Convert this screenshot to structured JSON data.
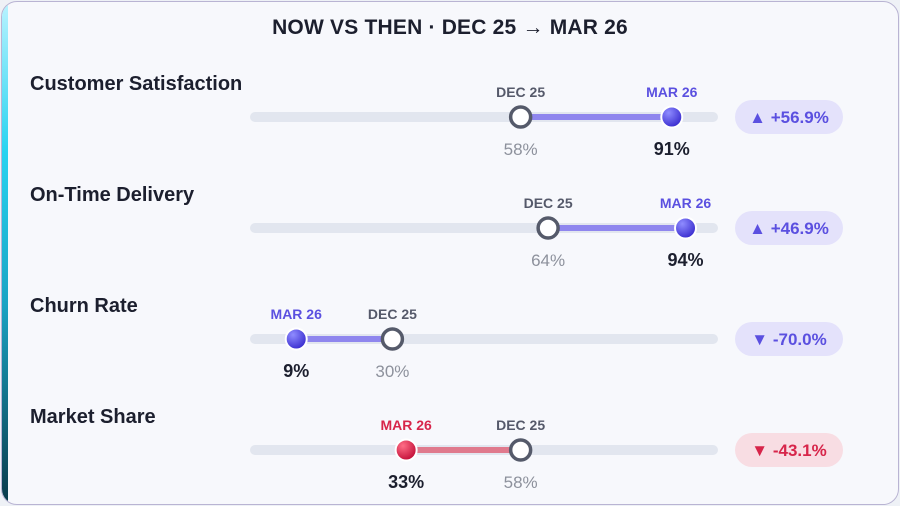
{
  "header": {
    "title": "NOW VS THEN · DEC 25 → MAR 26"
  },
  "colors": {
    "improve": "#5b50e0",
    "improve_light": "#8f86ee",
    "decline": "#d7254a",
    "decline_light": "#e07a8d",
    "improve_badge_bg": "#e4e2fb",
    "decline_badge_bg": "#f8dde3",
    "track": "#e2e6ef",
    "then_marker": "#555a6a",
    "then_value": "#8d919c"
  },
  "chart_data": {
    "type": "dumbbell",
    "title": "NOW VS THEN · DEC 25 → MAR 26",
    "xlim": [
      0,
      100
    ],
    "unit": "%",
    "then_label": "DEC 25",
    "now_label": "MAR 26",
    "rows": [
      {
        "metric": "Customer Satisfaction",
        "then": 58,
        "now": 91,
        "then_text": "58%",
        "now_text": "91%",
        "change": "▲ +56.9%",
        "direction": "improve"
      },
      {
        "metric": "On-Time Delivery",
        "then": 64,
        "now": 94,
        "then_text": "64%",
        "now_text": "94%",
        "change": "▲ +46.9%",
        "direction": "improve"
      },
      {
        "metric": "Churn Rate",
        "then": 30,
        "now": 9,
        "then_text": "30%",
        "now_text": "9%",
        "change": "▼ -70.0%",
        "direction": "improve"
      },
      {
        "metric": "Market Share",
        "then": 58,
        "now": 33,
        "then_text": "58%",
        "now_text": "33%",
        "change": "▼ -43.1%",
        "direction": "decline"
      }
    ]
  }
}
